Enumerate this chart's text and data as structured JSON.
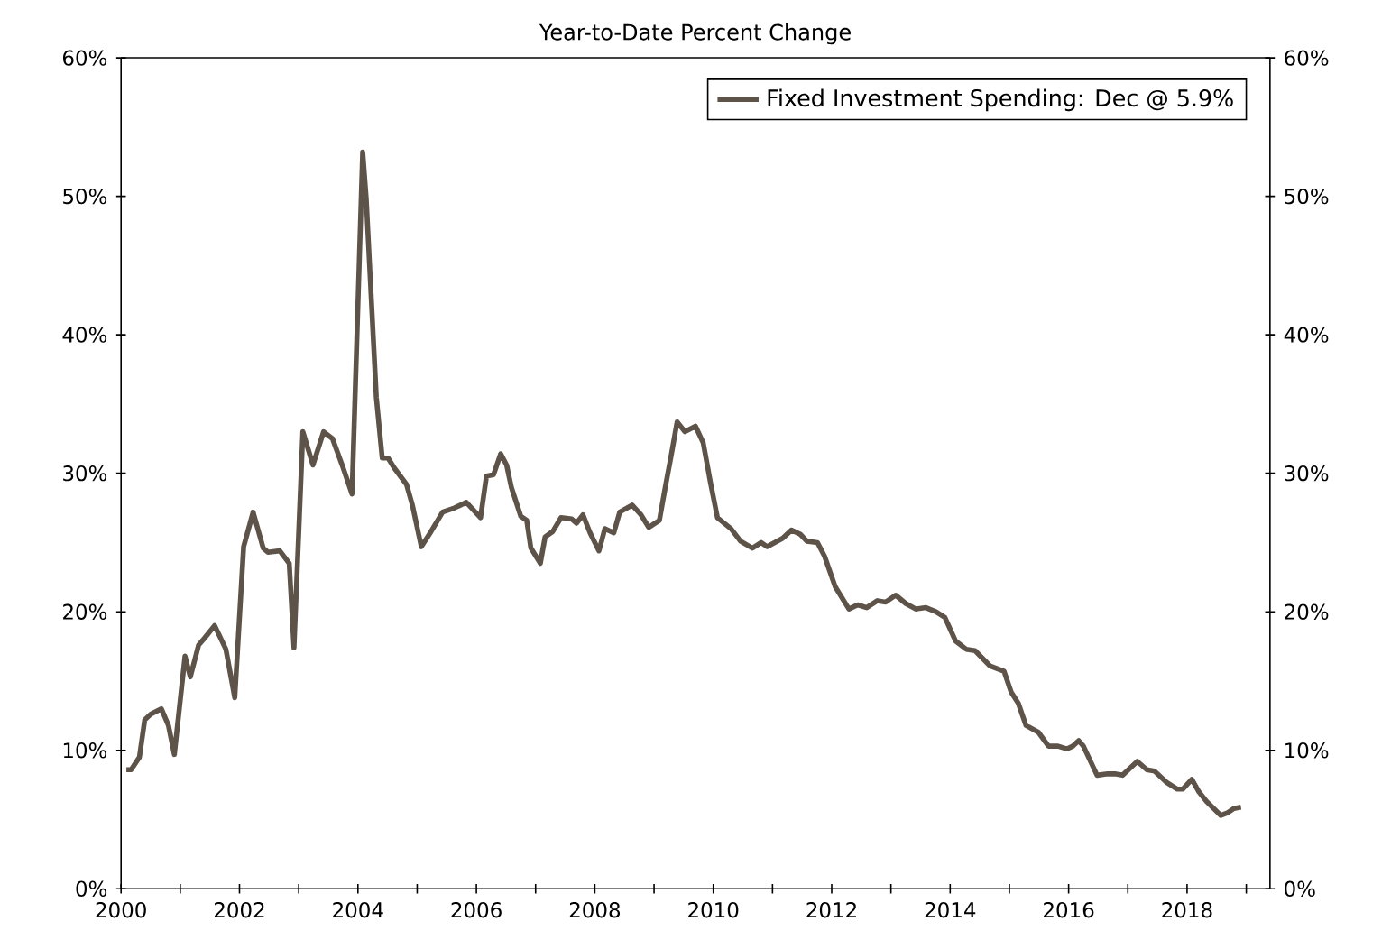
{
  "chart_data": {
    "type": "line",
    "title": "Year-to-Date Percent Change",
    "x": [
      2000.09,
      2000.17,
      2000.31,
      2000.4,
      2000.5,
      2000.68,
      2000.8,
      2000.9,
      2001.08,
      2001.17,
      2001.31,
      2001.41,
      2001.58,
      2001.77,
      2001.92,
      2002.07,
      2002.23,
      2002.4,
      2002.48,
      2002.68,
      2002.84,
      2002.92,
      2003.07,
      2003.24,
      2003.42,
      2003.57,
      2003.75,
      2003.9,
      2004.08,
      2004.14,
      2004.31,
      2004.41,
      2004.51,
      2004.61,
      2004.82,
      2004.92,
      2005.07,
      2005.22,
      2005.43,
      2005.63,
      2005.83,
      2006.07,
      2006.17,
      2006.29,
      2006.41,
      2006.51,
      2006.59,
      2006.75,
      2006.85,
      2006.92,
      2007.08,
      2007.16,
      2007.29,
      2007.43,
      2007.61,
      2007.69,
      2007.8,
      2007.92,
      2008.07,
      2008.17,
      2008.32,
      2008.42,
      2008.63,
      2008.78,
      2008.91,
      2009.09,
      2009.19,
      2009.29,
      2009.39,
      2009.52,
      2009.7,
      2009.83,
      2009.95,
      2010.07,
      2010.3,
      2010.46,
      2010.66,
      2010.81,
      2010.91,
      2011.17,
      2011.32,
      2011.47,
      2011.58,
      2011.76,
      2011.88,
      2012.06,
      2012.29,
      2012.44,
      2012.59,
      2012.77,
      2012.91,
      2013.08,
      2013.25,
      2013.42,
      2013.59,
      2013.76,
      2013.91,
      2014.09,
      2014.27,
      2014.42,
      2014.67,
      2014.91,
      2015.03,
      2015.15,
      2015.28,
      2015.49,
      2015.66,
      2015.82,
      2015.97,
      2016.07,
      2016.17,
      2016.25,
      2016.48,
      2016.66,
      2016.78,
      2016.91,
      2017.16,
      2017.32,
      2017.45,
      2017.65,
      2017.83,
      2017.93,
      2018.08,
      2018.2,
      2018.33,
      2018.57,
      2018.69,
      2018.79,
      2018.91
    ],
    "series": [
      {
        "name": "Fixed Investment Spending: Dec @ 5.9%",
        "color": "#5d5349",
        "values": [
          8.6,
          8.6,
          9.5,
          12.2,
          12.6,
          13.0,
          11.8,
          9.7,
          16.8,
          15.3,
          17.6,
          18.1,
          19.0,
          17.3,
          13.8,
          24.7,
          27.2,
          24.6,
          24.3,
          24.4,
          23.5,
          17.4,
          33.0,
          30.6,
          33.0,
          32.5,
          30.4,
          28.5,
          53.2,
          49.8,
          35.5,
          31.1,
          31.1,
          30.4,
          29.2,
          27.7,
          24.7,
          25.7,
          27.2,
          27.5,
          27.9,
          26.8,
          29.8,
          29.9,
          31.4,
          30.6,
          29.0,
          26.9,
          26.6,
          24.6,
          23.5,
          25.4,
          25.8,
          26.8,
          26.7,
          26.4,
          27.0,
          25.7,
          24.4,
          26.0,
          25.7,
          27.2,
          27.7,
          27.0,
          26.1,
          26.6,
          29.0,
          31.3,
          33.7,
          33.0,
          33.4,
          32.2,
          29.4,
          26.8,
          26.0,
          25.1,
          24.6,
          25.0,
          24.7,
          25.3,
          25.9,
          25.6,
          25.1,
          25.0,
          24.0,
          21.8,
          20.2,
          20.5,
          20.3,
          20.8,
          20.7,
          21.2,
          20.6,
          20.2,
          20.3,
          20.0,
          19.6,
          17.9,
          17.3,
          17.2,
          16.1,
          15.7,
          14.2,
          13.4,
          11.8,
          11.3,
          10.3,
          10.3,
          10.1,
          10.3,
          10.7,
          10.3,
          8.2,
          8.3,
          8.3,
          8.2,
          9.2,
          8.6,
          8.5,
          7.7,
          7.2,
          7.2,
          7.9,
          7.0,
          6.3,
          5.3,
          5.5,
          5.8,
          5.9
        ]
      }
    ],
    "xlim": [
      2000,
      2019.4
    ],
    "xticks": [
      2000,
      {
        "value": 2001,
        "label": null
      },
      2002,
      {
        "value": 2003,
        "label": null
      },
      2004,
      {
        "value": 2005,
        "label": null
      },
      2006,
      {
        "value": 2007,
        "label": null
      },
      2008,
      {
        "value": 2009,
        "label": null
      },
      2010,
      {
        "value": 2011,
        "label": null
      },
      2012,
      {
        "value": 2013,
        "label": null
      },
      2014,
      {
        "value": 2015,
        "label": null
      },
      2016,
      {
        "value": 2017,
        "label": null
      },
      2018,
      {
        "value": 2019,
        "label": null
      }
    ],
    "ylim": [
      0,
      60
    ],
    "yticks": [
      {
        "value": 0,
        "label": "0%"
      },
      {
        "value": 10,
        "label": "10%"
      },
      {
        "value": 20,
        "label": "20%"
      },
      {
        "value": 30,
        "label": "30%"
      },
      {
        "value": 40,
        "label": "40%"
      },
      {
        "value": 50,
        "label": "50%"
      },
      {
        "value": 60,
        "label": "60%"
      }
    ],
    "y2lim": [
      0,
      60
    ],
    "y2ticks": [
      {
        "value": 0,
        "label": "0%"
      },
      {
        "value": 10,
        "label": "10%"
      },
      {
        "value": 20,
        "label": "20%"
      },
      {
        "value": 30,
        "label": "30%"
      },
      {
        "value": 40,
        "label": "40%"
      },
      {
        "value": 50,
        "label": "50%"
      },
      {
        "value": 60,
        "label": "60%"
      }
    ],
    "legend": "top right",
    "marker": "none",
    "line_style": "solid",
    "grid": false
  }
}
